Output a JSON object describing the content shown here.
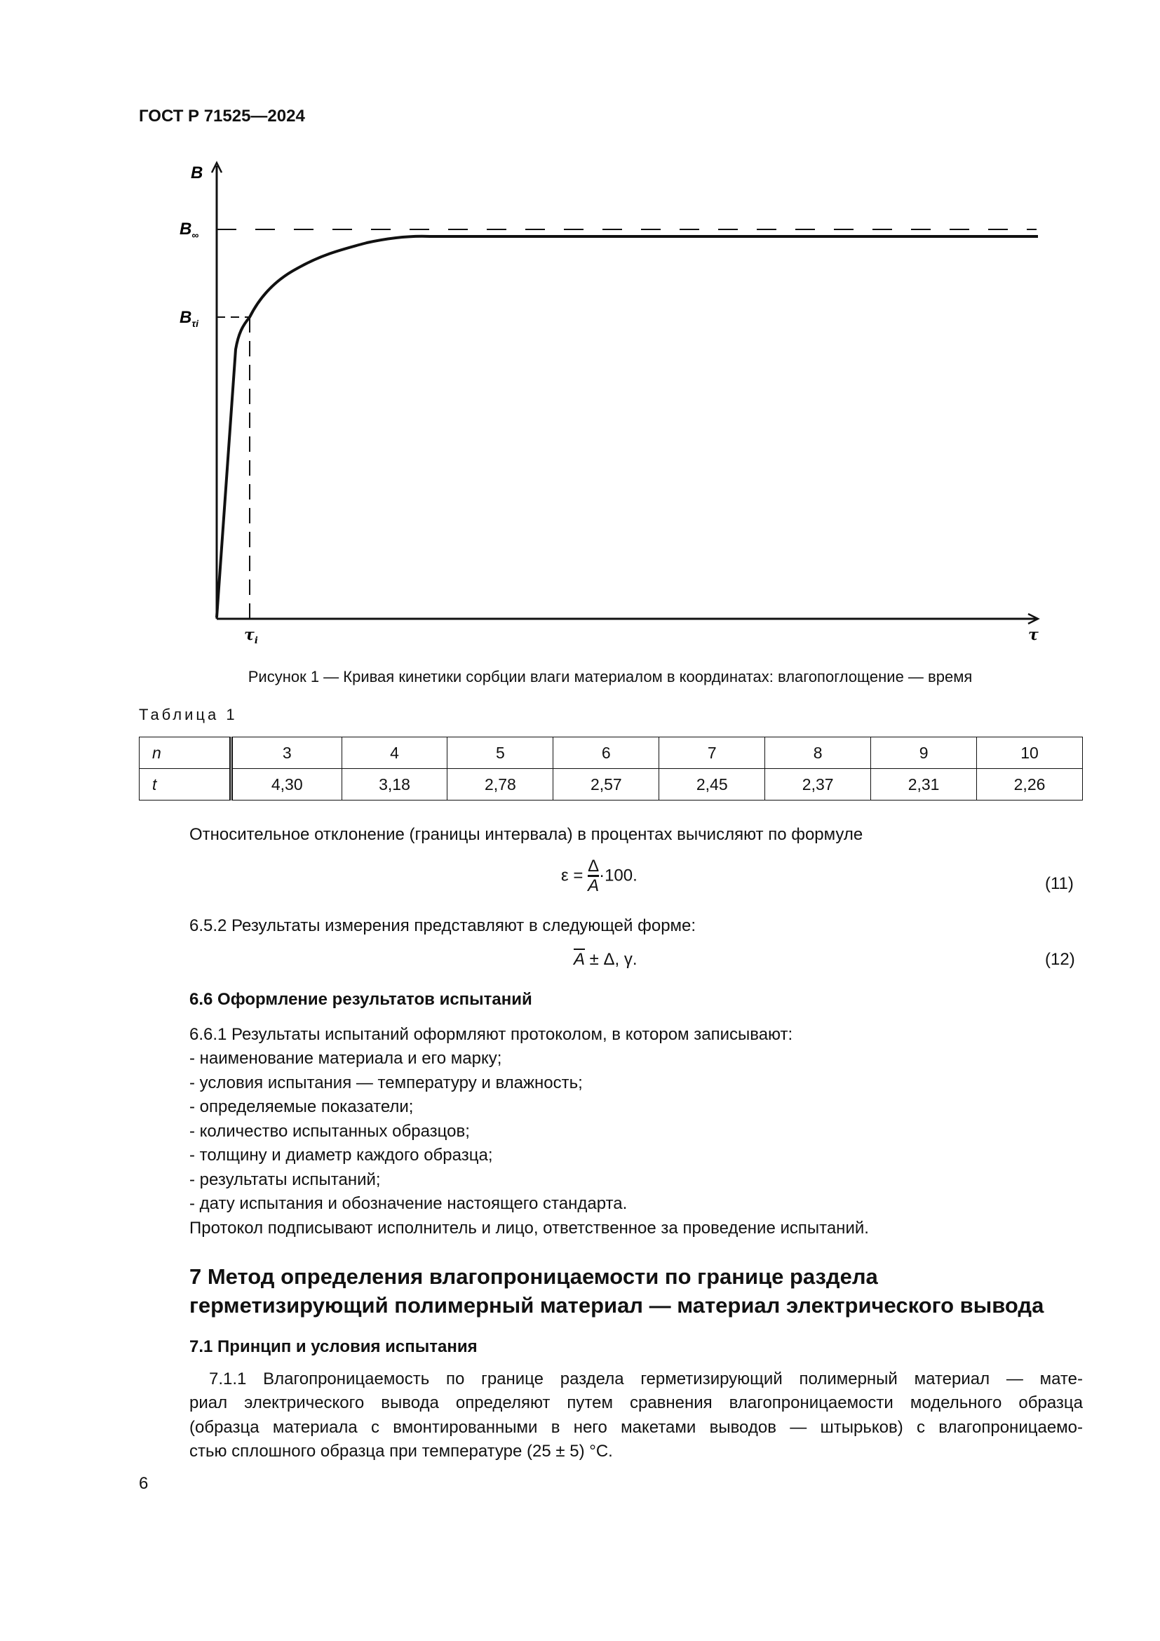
{
  "header": {
    "doc_id": "ГОСТ Р 71525—2024"
  },
  "figure": {
    "y_axis_label": "B",
    "x_axis_label": "τ",
    "b_inf_label": "B",
    "b_inf_sub": "∞",
    "b_ti_label": "B",
    "b_ti_sub": "τi",
    "tau_i_label": "τ",
    "tau_i_sub": "i",
    "caption": "Рисунок 1 — Кривая кинетики сорбции влаги материалом в координатах: влагопоглощение — время"
  },
  "table": {
    "caption": "Таблица 1",
    "rows": [
      {
        "label": "n",
        "values": [
          "3",
          "4",
          "5",
          "6",
          "7",
          "8",
          "9",
          "10"
        ]
      },
      {
        "label": "t",
        "values": [
          "4,30",
          "3,18",
          "2,78",
          "2,57",
          "2,45",
          "2,37",
          "2,31",
          "2,26"
        ]
      }
    ]
  },
  "body": {
    "p1": "Относительное отклонение (границы интервала) в процентах вычисляют по формуле",
    "f11": {
      "lhs": "ε =",
      "num": "Δ",
      "den": "A",
      "rhs": "·100.",
      "number": "(11)"
    },
    "p2": "6.5.2 Результаты измерения представляют в следующей форме:",
    "f12": {
      "a": "A",
      "rest": " ± Δ, γ.",
      "number": "(12)"
    },
    "h66": "6.6 Оформление результатов испытаний",
    "p661": "6.6.1 Результаты испытаний оформляют протоколом, в котором записывают:",
    "list": [
      "- наименование материала и его марку;",
      "- условия испытания — температуру и влажность;",
      "- определяемые показатели;",
      "- количество испытанных образцов;",
      "- толщину и диаметр каждого образца;",
      "- результаты испытаний;",
      "- дату испытания и обозначение настоящего стандарта."
    ],
    "protocol": "Протокол подписывают исполнитель и лицо, ответственное за проведение испытаний.",
    "h7_line1": "7 Метод определения влагопроницаемости по границе раздела",
    "h7_line2": "герметизирующий полимерный материал — материал электрического вывода",
    "h71": "7.1 Принцип и условия испытания",
    "p711": [
      "7.1.1 Влагопроницаемость по границе раздела герметизирующий полимерный материал — мате-",
      "риал электрического вывода определяют путем сравнения влагопроницаемости модельного образца",
      "(образца материала с вмонтированными в него макетами выводов — штырьков) с влагопроницаемо-",
      "стью сплошного образца при температуре (25 ± 5) °С."
    ]
  },
  "footer": {
    "page_number": "6"
  }
}
